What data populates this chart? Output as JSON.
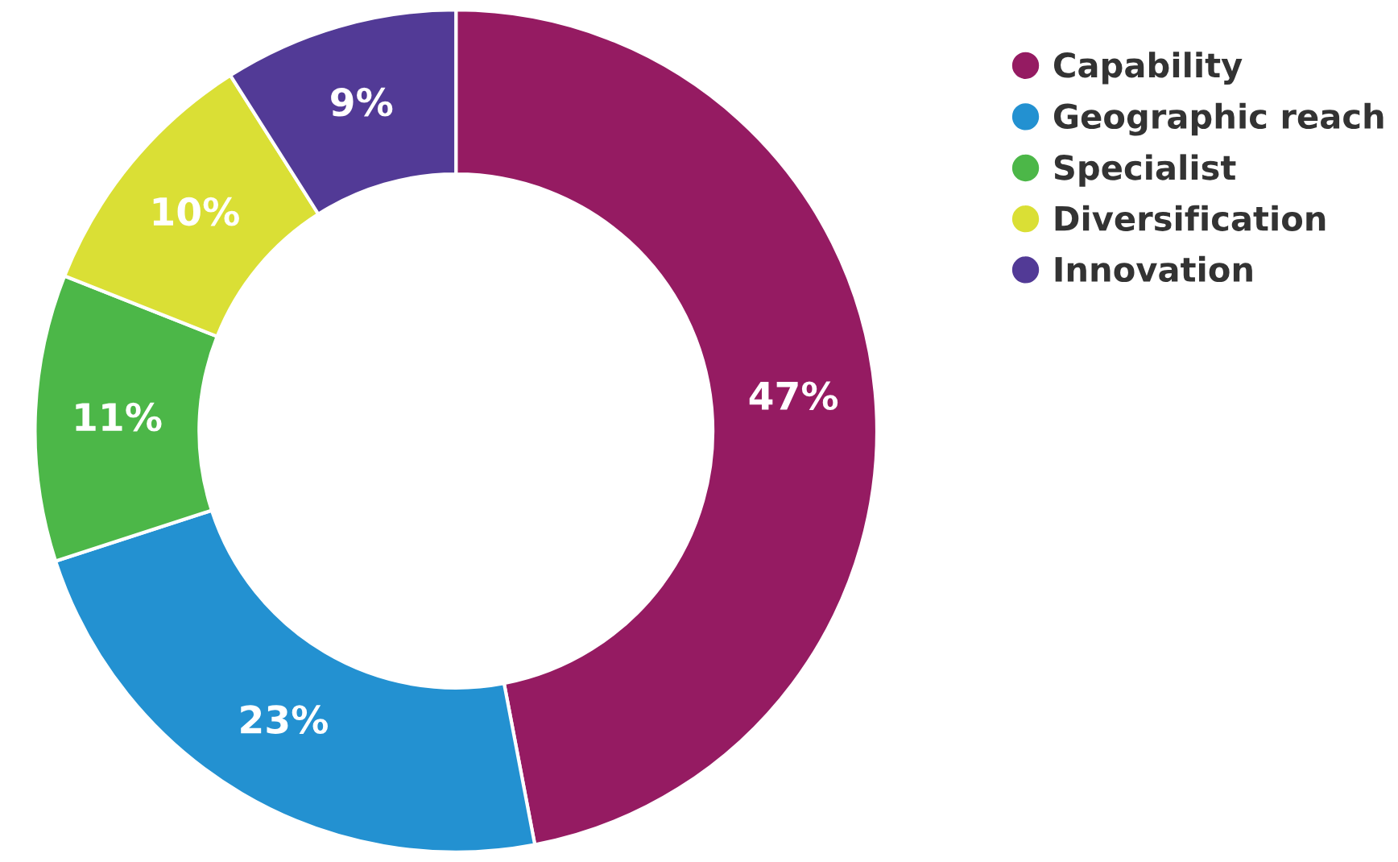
{
  "chart_data": {
    "type": "donut",
    "categories": [
      "Capability",
      "Geographic reach",
      "Specialist",
      "Diversification",
      "Innovation"
    ],
    "values": [
      47,
      23,
      11,
      10,
      9
    ],
    "colors": [
      "#951b62",
      "#2391d1",
      "#4cb748",
      "#dadf35",
      "#523a96"
    ],
    "value_labels": [
      "47%",
      "23%",
      "11%",
      "10%",
      "9%"
    ],
    "legend": "top right"
  }
}
